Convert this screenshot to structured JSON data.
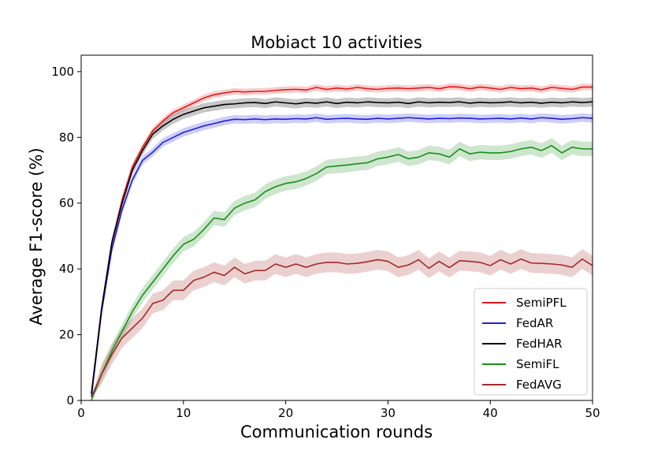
{
  "chart_data": {
    "type": "line",
    "title": "Mobiact 10 activities",
    "xlabel": "Communication rounds",
    "ylabel": "Average F1-score (%)",
    "xlim": [
      0,
      50
    ],
    "ylim": [
      0,
      105
    ],
    "xticks": [
      0,
      10,
      20,
      30,
      40,
      50
    ],
    "yticks": [
      0,
      20,
      40,
      60,
      80,
      100
    ],
    "grid": false,
    "legend_position": "lower-right",
    "x": [
      1,
      2,
      3,
      4,
      5,
      6,
      7,
      8,
      9,
      10,
      11,
      12,
      13,
      14,
      15,
      16,
      17,
      18,
      19,
      20,
      21,
      22,
      23,
      24,
      25,
      26,
      27,
      28,
      29,
      30,
      31,
      32,
      33,
      34,
      35,
      36,
      37,
      38,
      39,
      40,
      41,
      42,
      43,
      44,
      45,
      46,
      47,
      48,
      49,
      50
    ],
    "series": [
      {
        "name": "SemiPFL",
        "color": "#e31a1c",
        "band": 1.0,
        "values": [
          2,
          28,
          48,
          61,
          71,
          77,
          82,
          85,
          87.5,
          89,
          90.5,
          92,
          93,
          93.5,
          94,
          93.8,
          94,
          94,
          94.3,
          94.5,
          94.6,
          94.4,
          95.2,
          94.6,
          95,
          94.7,
          95.2,
          94.8,
          94.6,
          94.9,
          95,
          94.8,
          95,
          95.2,
          94.8,
          95.4,
          95.3,
          94.8,
          95.3,
          95,
          94.6,
          95.2,
          94.8,
          95,
          94.5,
          95.2,
          94.9,
          94.6,
          95.3,
          95.3
        ]
      },
      {
        "name": "FedAR",
        "color": "#1f1fe0",
        "band": 1.3,
        "values": [
          1,
          27,
          46,
          58,
          67,
          73,
          75.5,
          78.5,
          80,
          81.5,
          82.5,
          83.5,
          84.2,
          85,
          85.5,
          85.4,
          85.6,
          85.4,
          85.6,
          85.5,
          85.7,
          85.6,
          86,
          85.5,
          85.7,
          85.8,
          85.6,
          85.5,
          85.8,
          85.6,
          85.8,
          86,
          85.8,
          85.6,
          85.8,
          85.7,
          85.9,
          85.8,
          85.6,
          85.7,
          85.8,
          85.6,
          85.9,
          85.6,
          86,
          85.8,
          85.5,
          85.7,
          86,
          85.8
        ]
      },
      {
        "name": "FedHAR",
        "color": "#000000",
        "band": 1.4,
        "values": [
          2,
          28,
          48,
          60,
          70,
          76,
          81,
          83.5,
          85.5,
          87,
          88,
          89,
          89.5,
          90,
          90.2,
          90.5,
          90.6,
          90.3,
          90.8,
          90.5,
          90.2,
          90.6,
          90.4,
          90.8,
          90.3,
          90.7,
          90.5,
          90.8,
          90.6,
          90.5,
          90.7,
          90.3,
          90.8,
          90.5,
          90.7,
          90.6,
          90.8,
          90.4,
          90.7,
          90.5,
          90.6,
          90.8,
          90.5,
          90.7,
          90.4,
          90.7,
          90.5,
          90.8,
          90.6,
          90.8
        ]
      },
      {
        "name": "SemiFL",
        "color": "#1a8f1a",
        "band": 2.2,
        "values": [
          0,
          8,
          15,
          21,
          27,
          32,
          36,
          40,
          44,
          47.5,
          49,
          52,
          55.5,
          55,
          58.5,
          60,
          61,
          63.5,
          65,
          66,
          66.5,
          67.5,
          69,
          71,
          71.3,
          71.6,
          72,
          72.3,
          73.5,
          74,
          74.8,
          73.5,
          74,
          75.3,
          75,
          74,
          76.5,
          75,
          75.5,
          75.3,
          75.3,
          75.7,
          76.5,
          77,
          76,
          77.5,
          75.3,
          77,
          76.5,
          76.5
        ]
      },
      {
        "name": "FedAVG",
        "color": "#a52a2a",
        "band": 3.0,
        "values": [
          1,
          8,
          14,
          19,
          22,
          25,
          29.5,
          30.5,
          33.5,
          33.5,
          36.5,
          37.5,
          39,
          38,
          40.5,
          38.5,
          39.5,
          39.5,
          41.5,
          40.5,
          41.5,
          40.5,
          41.5,
          42,
          42,
          41.5,
          41.7,
          42.2,
          42.8,
          42.3,
          40.5,
          41.2,
          42.8,
          40.2,
          42.3,
          40.4,
          42.5,
          42.3,
          42,
          41,
          42.8,
          41.5,
          43,
          41.8,
          41.7,
          41.5,
          41.2,
          40.5,
          43,
          41
        ]
      }
    ]
  }
}
